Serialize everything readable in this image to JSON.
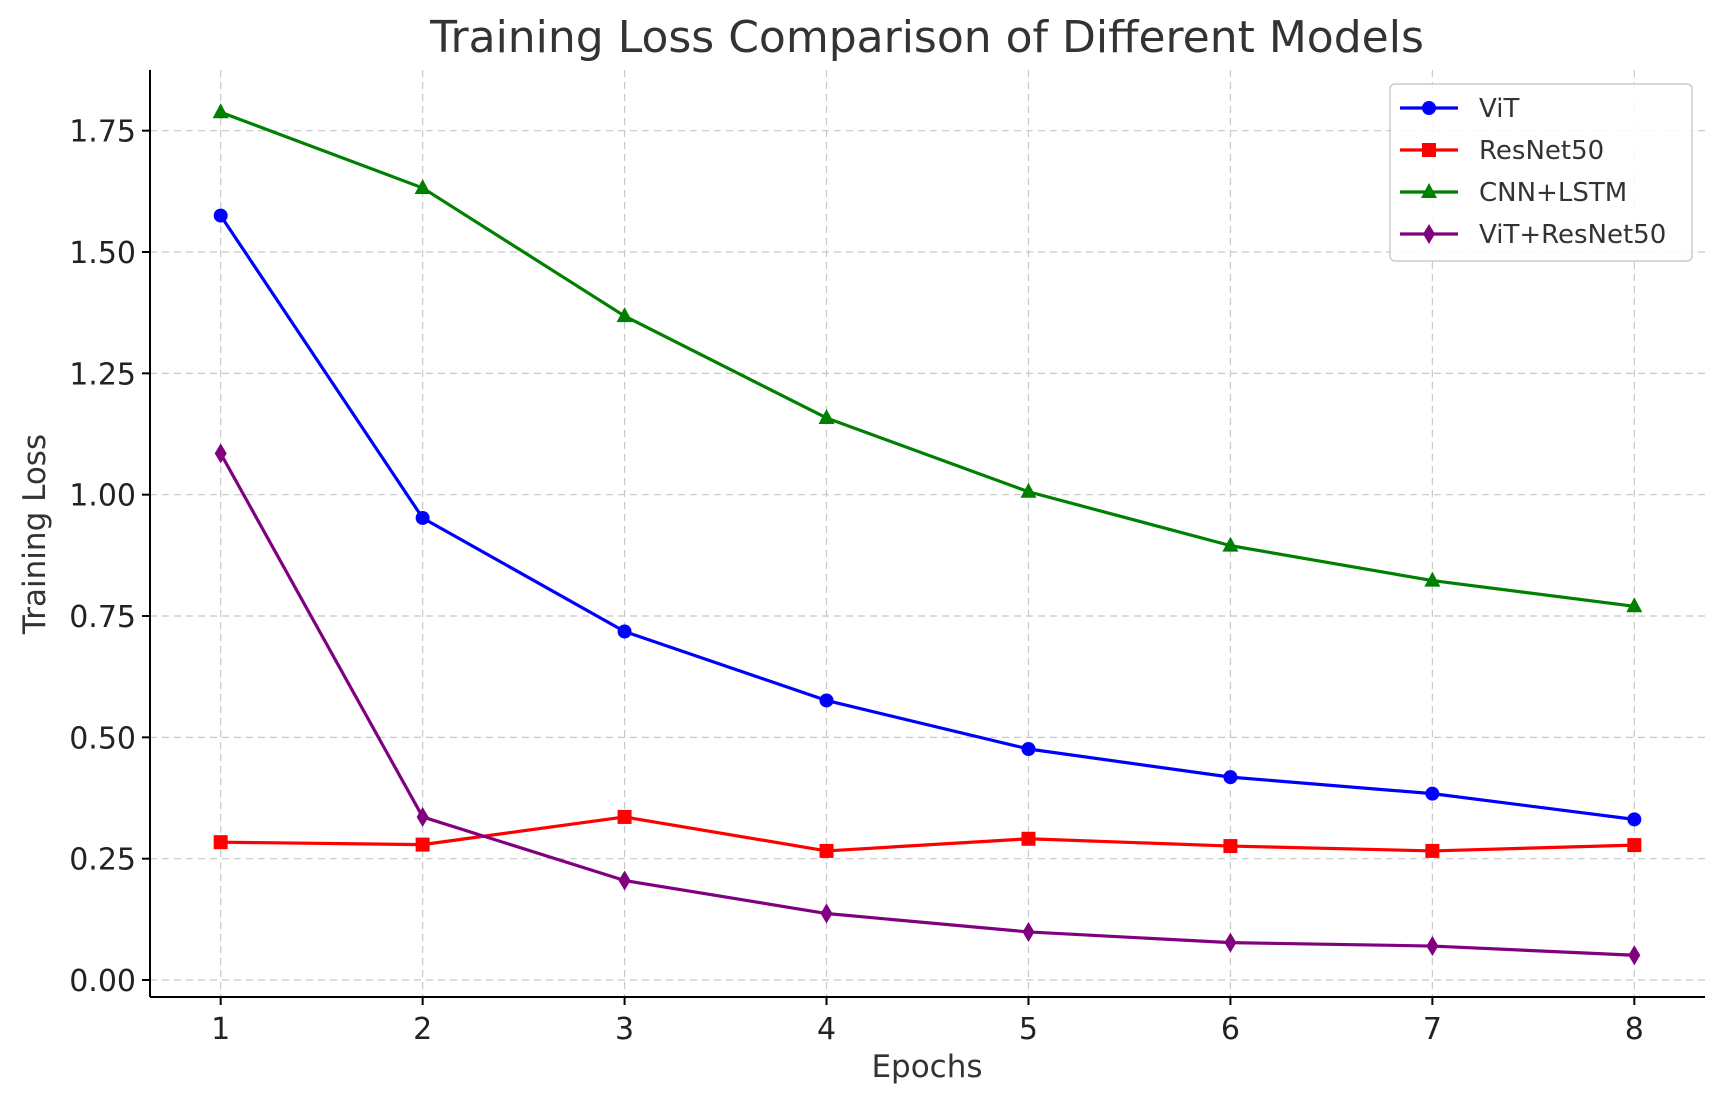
{
  "chart_data": {
    "type": "line",
    "title": "Training Loss Comparison of Different Models",
    "xlabel": "Epochs",
    "ylabel": "Training Loss",
    "x": [
      1,
      2,
      3,
      4,
      5,
      6,
      7,
      8
    ],
    "xlim": [
      0.65,
      8.35
    ],
    "ylim": [
      -0.035,
      1.875
    ],
    "xticks": [
      "1",
      "2",
      "3",
      "4",
      "5",
      "6",
      "7",
      "8"
    ],
    "yticks": [
      0.0,
      0.25,
      0.5,
      0.75,
      1.0,
      1.25,
      1.5,
      1.75
    ],
    "ytick_labels": [
      "0.00",
      "0.25",
      "0.50",
      "0.75",
      "1.00",
      "1.25",
      "1.50",
      "1.75"
    ],
    "grid": true,
    "legend_position": "top-right",
    "series": [
      {
        "name": "ViT",
        "color": "#0000ff",
        "marker": "circle",
        "values": [
          1.575,
          0.952,
          0.718,
          0.576,
          0.476,
          0.418,
          0.384,
          0.331
        ]
      },
      {
        "name": "ResNet50",
        "color": "#ff0000",
        "marker": "square",
        "values": [
          0.284,
          0.279,
          0.336,
          0.266,
          0.291,
          0.276,
          0.266,
          0.278
        ]
      },
      {
        "name": "CNN+LSTM",
        "color": "#008000",
        "marker": "triangle",
        "values": [
          1.788,
          1.632,
          1.368,
          1.158,
          1.006,
          0.895,
          0.823,
          0.77
        ]
      },
      {
        "name": "ViT+ResNet50",
        "color": "#800080",
        "marker": "diamond",
        "values": [
          1.085,
          0.336,
          0.205,
          0.137,
          0.099,
          0.077,
          0.07,
          0.051
        ]
      }
    ]
  }
}
